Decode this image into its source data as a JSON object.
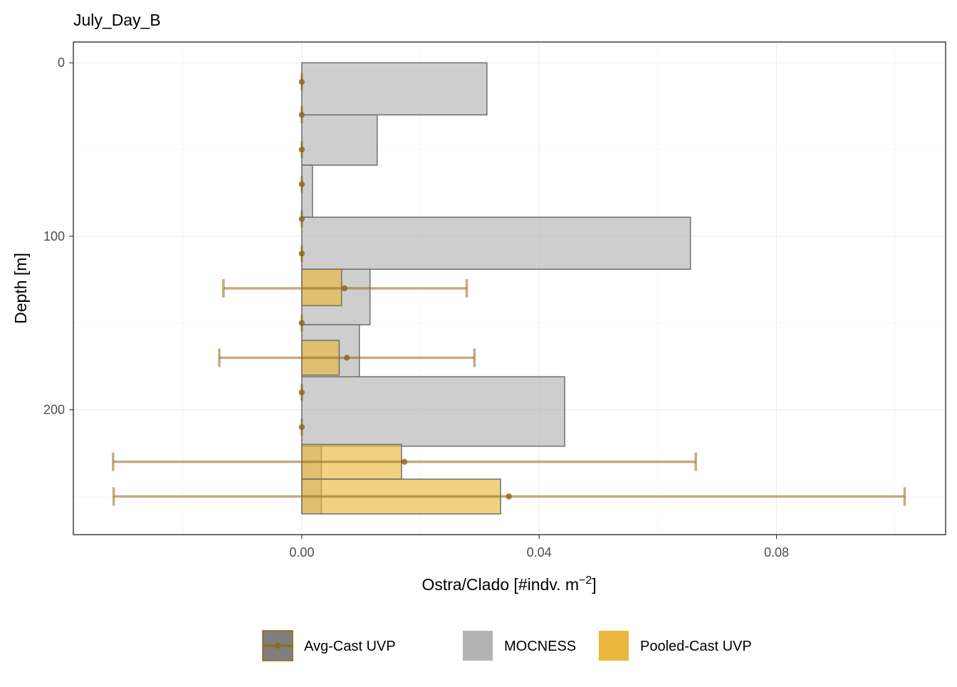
{
  "chart_data": {
    "type": "bar",
    "orientation": "horizontal",
    "title": "July_Day_B",
    "xlabel": "Ostra/Clado [#indv. m",
    "xlabel_sup": "−2",
    "xlabel_end": "]",
    "ylabel": "Depth [m]",
    "xlim": [
      -0.0385,
      0.1085
    ],
    "ylim_reversed": [
      -12,
      272
    ],
    "x_ticks": [
      0.0,
      0.04,
      0.08
    ],
    "x_tick_labels": [
      "0.00",
      "0.04",
      "0.08"
    ],
    "y_ticks": [
      0,
      100,
      200
    ],
    "y_tick_labels": [
      "0",
      "100",
      "200"
    ],
    "grid": true,
    "legend_position": "bottom",
    "legend": [
      {
        "label": "Avg-Cast UVP",
        "key": "avg"
      },
      {
        "label": "MOCNESS",
        "key": "mocness"
      },
      {
        "label": "Pooled-Cast UVP",
        "key": "pooled"
      }
    ],
    "series": [
      {
        "name": "MOCNESS",
        "kind": "bar",
        "color": "#b3b3b3",
        "bars": [
          {
            "y0": 0,
            "y1": 30,
            "value": 0.0312
          },
          {
            "y0": 30,
            "y1": 59,
            "value": 0.0127
          },
          {
            "y0": 59,
            "y1": 89,
            "value": 0.0018
          },
          {
            "y0": 89,
            "y1": 119,
            "value": 0.0655
          },
          {
            "y0": 119,
            "y1": 151,
            "value": 0.0115
          },
          {
            "y0": 151,
            "y1": 181,
            "value": 0.0097
          },
          {
            "y0": 181,
            "y1": 221,
            "value": 0.0443
          },
          {
            "y0": 221,
            "y1": 240,
            "value": 0.0033
          },
          {
            "y0": 240,
            "y1": 260,
            "value": 0.0033
          }
        ]
      },
      {
        "name": "Pooled-Cast UVP",
        "kind": "bar",
        "color": "#e8b93a",
        "bars": [
          {
            "y0": 119,
            "y1": 140,
            "value": 0.0067
          },
          {
            "y0": 160,
            "y1": 180,
            "value": 0.0063
          },
          {
            "y0": 220,
            "y1": 240,
            "value": 0.0168
          },
          {
            "y0": 240,
            "y1": 260,
            "value": 0.0335
          }
        ]
      },
      {
        "name": "Avg-Cast UVP",
        "kind": "point_errorbar",
        "color": "#8f6a1f",
        "points": [
          {
            "depth": 11,
            "x": 0.0,
            "xmin": 0.0,
            "xmax": 0.0
          },
          {
            "depth": 30,
            "x": 0.0,
            "xmin": 0.0,
            "xmax": 0.0
          },
          {
            "depth": 50,
            "x": 0.0,
            "xmin": 0.0,
            "xmax": 0.0
          },
          {
            "depth": 70,
            "x": 0.0,
            "xmin": 0.0,
            "xmax": 0.0
          },
          {
            "depth": 90,
            "x": 0.0,
            "xmin": 0.0,
            "xmax": 0.0
          },
          {
            "depth": 110,
            "x": 0.0,
            "xmin": 0.0,
            "xmax": 0.0
          },
          {
            "depth": 130,
            "x": 0.0072,
            "xmin": -0.0132,
            "xmax": 0.0278
          },
          {
            "depth": 150,
            "x": 0.0,
            "xmin": 0.0,
            "xmax": 0.0
          },
          {
            "depth": 170,
            "x": 0.0076,
            "xmin": -0.0139,
            "xmax": 0.0291
          },
          {
            "depth": 190,
            "x": 0.0,
            "xmin": 0.0,
            "xmax": 0.0
          },
          {
            "depth": 210,
            "x": 0.0,
            "xmin": 0.0,
            "xmax": 0.0
          },
          {
            "depth": 230,
            "x": 0.0173,
            "xmin": -0.0318,
            "xmax": 0.0664
          },
          {
            "depth": 250,
            "x": 0.0349,
            "xmin": -0.0317,
            "xmax": 0.1016
          }
        ]
      }
    ]
  }
}
